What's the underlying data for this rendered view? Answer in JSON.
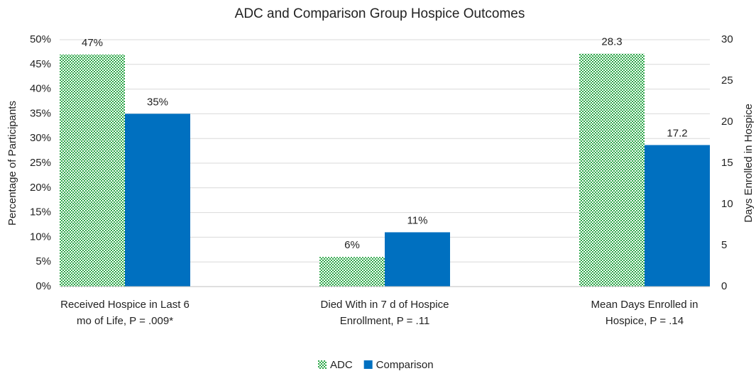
{
  "chart_data": {
    "type": "bar",
    "title": "ADC and Comparison Group Hospice Outcomes",
    "categories": [
      "Received Hospice in Last 6 mo of Life, P = .009*",
      "Died With in 7 d of Hospice Enrollment, P = .11",
      "Mean Days Enrolled in Hospice, P = .14"
    ],
    "series": [
      {
        "name": "ADC",
        "color": "#2ea84a",
        "pattern": "checker",
        "values": [
          47,
          6,
          28.3
        ],
        "axes": [
          "y",
          "y",
          "y2"
        ],
        "value_labels": [
          "47%",
          "6%",
          "28.3"
        ]
      },
      {
        "name": "Comparison",
        "color": "#0070c0",
        "values": [
          35,
          11,
          17.2
        ],
        "axes": [
          "y",
          "y",
          "y2"
        ],
        "value_labels": [
          "35%",
          "11%",
          "17.2"
        ]
      }
    ],
    "y_label": "Percentage of Participants",
    "y2_label": "Days Enrolled in Hospice",
    "ylim": [
      0,
      50
    ],
    "yticks": [
      {
        "value": 0,
        "label": "0%"
      },
      {
        "value": 5,
        "label": "5%"
      },
      {
        "value": 10,
        "label": "10%"
      },
      {
        "value": 15,
        "label": "15%"
      },
      {
        "value": 20,
        "label": "20%"
      },
      {
        "value": 25,
        "label": "25%"
      },
      {
        "value": 30,
        "label": "30%"
      },
      {
        "value": 35,
        "label": "35%"
      },
      {
        "value": 40,
        "label": "40%"
      },
      {
        "value": 45,
        "label": "45%"
      },
      {
        "value": 50,
        "label": "50%"
      }
    ],
    "y2lim": [
      0,
      30
    ],
    "y2ticks": [
      0,
      5,
      10,
      15,
      20,
      25,
      30
    ],
    "grid": true,
    "legend": "bottom"
  }
}
